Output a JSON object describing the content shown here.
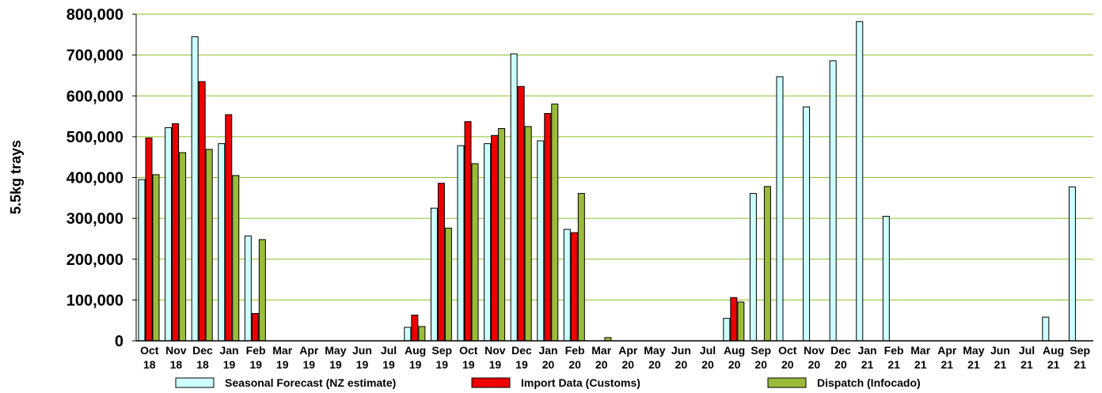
{
  "chart_data": {
    "type": "bar",
    "title": "",
    "xlabel": "",
    "ylabel": "5.5kg trays",
    "ylim": [
      0,
      800000
    ],
    "yticks": [
      0,
      100000,
      200000,
      300000,
      400000,
      500000,
      600000,
      700000,
      800000
    ],
    "ytick_labels": [
      "0",
      "100,000",
      "200,000",
      "300,000",
      "400,000",
      "500,000",
      "600,000",
      "700,000",
      "800,000"
    ],
    "grid": true,
    "legend_position": "bottom",
    "categories": [
      [
        "Oct",
        "18"
      ],
      [
        "Nov",
        "18"
      ],
      [
        "Dec",
        "18"
      ],
      [
        "Jan",
        "19"
      ],
      [
        "Feb",
        "19"
      ],
      [
        "Mar",
        "19"
      ],
      [
        "Apr",
        "19"
      ],
      [
        "May",
        "19"
      ],
      [
        "Jun",
        "19"
      ],
      [
        "Jul",
        "19"
      ],
      [
        "Aug",
        "19"
      ],
      [
        "Sep",
        "19"
      ],
      [
        "Oct",
        "19"
      ],
      [
        "Nov",
        "19"
      ],
      [
        "Dec",
        "19"
      ],
      [
        "Jan",
        "20"
      ],
      [
        "Feb",
        "20"
      ],
      [
        "Mar",
        "20"
      ],
      [
        "Apr",
        "20"
      ],
      [
        "May",
        "20"
      ],
      [
        "Jun",
        "20"
      ],
      [
        "Jul",
        "20"
      ],
      [
        "Aug",
        "20"
      ],
      [
        "Sep",
        "20"
      ],
      [
        "Oct",
        "20"
      ],
      [
        "Nov",
        "20"
      ],
      [
        "Dec",
        "20"
      ],
      [
        "Jan",
        "21"
      ],
      [
        "Feb",
        "21"
      ],
      [
        "Mar",
        "21"
      ],
      [
        "Apr",
        "21"
      ],
      [
        "May",
        "21"
      ],
      [
        "Jun",
        "21"
      ],
      [
        "Jul",
        "21"
      ],
      [
        "Aug",
        "21"
      ],
      [
        "Sep",
        "21"
      ]
    ],
    "series": [
      {
        "name": "Seasonal Forecast (NZ estimate)",
        "color": "#ccffff",
        "values": [
          395000,
          522000,
          745000,
          483000,
          257000,
          0,
          0,
          0,
          0,
          0,
          33000,
          325000,
          478000,
          483000,
          703000,
          490000,
          273000,
          0,
          0,
          0,
          0,
          0,
          55000,
          361000,
          647000,
          573000,
          686000,
          782000,
          305000,
          0,
          0,
          0,
          0,
          0,
          58000,
          377000
        ]
      },
      {
        "name": "Import Data (Customs)",
        "color": "#ee0000",
        "values": [
          497000,
          532000,
          635000,
          554000,
          67000,
          0,
          0,
          0,
          0,
          0,
          63000,
          386000,
          537000,
          503000,
          623000,
          557000,
          265000,
          0,
          0,
          0,
          0,
          0,
          106000,
          0,
          0,
          0,
          0,
          0,
          0,
          0,
          0,
          0,
          0,
          0,
          0,
          0
        ]
      },
      {
        "name": "Dispatch (Infocado)",
        "color": "#9bbb3a",
        "values": [
          407000,
          461000,
          469000,
          405000,
          248000,
          0,
          0,
          0,
          0,
          0,
          35000,
          276000,
          434000,
          520000,
          525000,
          580000,
          361000,
          8000,
          0,
          0,
          0,
          0,
          95000,
          378000,
          0,
          0,
          0,
          0,
          0,
          0,
          0,
          0,
          0,
          0,
          0,
          0
        ]
      }
    ]
  }
}
